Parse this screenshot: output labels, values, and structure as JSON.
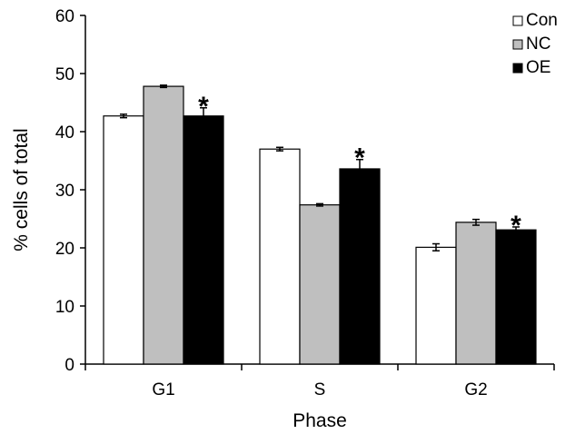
{
  "chart_data": {
    "type": "bar",
    "title": "",
    "xlabel": "Phase",
    "ylabel": "% cells of total",
    "ylim": [
      0,
      60
    ],
    "yticks": [
      0,
      10,
      20,
      30,
      40,
      50,
      60
    ],
    "grid": false,
    "legend_position": "top-right",
    "categories": [
      "G1",
      "S",
      "G2"
    ],
    "series": [
      {
        "name": "Con",
        "color": "#ffffff",
        "values": [
          42.7,
          37.0,
          20.1
        ],
        "errors": [
          0.3,
          0.3,
          0.6
        ]
      },
      {
        "name": "NC",
        "color": "#bfbfbf",
        "values": [
          47.8,
          27.4,
          24.4
        ],
        "errors": [
          0.2,
          0.2,
          0.5
        ]
      },
      {
        "name": "OE",
        "color": "#000000",
        "values": [
          42.7,
          33.6,
          23.1
        ],
        "errors": [
          1.4,
          1.6,
          0.5
        ]
      }
    ],
    "annotations": [
      {
        "category": "G1",
        "series": "OE",
        "text": "*"
      },
      {
        "category": "S",
        "series": "OE",
        "text": "*"
      },
      {
        "category": "G2",
        "series": "OE",
        "text": "*"
      }
    ]
  }
}
